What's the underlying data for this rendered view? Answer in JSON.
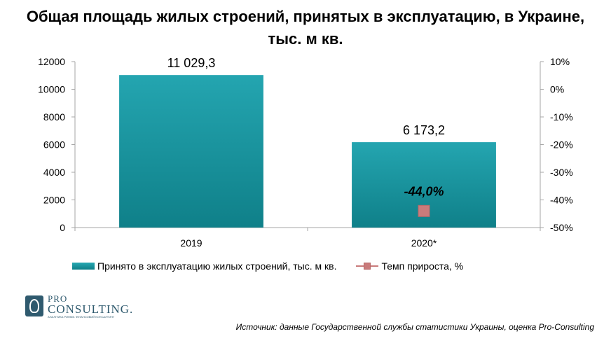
{
  "title": "Общая площадь жилых строений, принятых в эксплуатацию, в Украине, тыс. м кв.",
  "chart_data": {
    "type": "bar",
    "categories": [
      "2019",
      "2020*"
    ],
    "series": [
      {
        "name": "Принято  в эксплуатацию жилых  строений,  тыс. м кв.",
        "type": "bar",
        "axis": "left",
        "values": [
          11029.3,
          6173.2
        ],
        "labels": [
          "11 029,3",
          "6 173,2"
        ],
        "color": "#1a959f"
      },
      {
        "name": "Темп  прироста,  %",
        "type": "line",
        "axis": "right",
        "values": [
          null,
          -44.0
        ],
        "labels": [
          "",
          "-44,0%"
        ],
        "color": "#c97b7b"
      }
    ],
    "y_left": {
      "ylim": [
        0,
        12000
      ],
      "ticks": [
        0,
        2000,
        4000,
        6000,
        8000,
        10000,
        12000
      ],
      "tick_labels": [
        "0",
        "2000",
        "4000",
        "6000",
        "8000",
        "10000",
        "12000"
      ]
    },
    "y_right": {
      "ylim": [
        -50,
        10
      ],
      "ticks": [
        -50,
        -40,
        -30,
        -20,
        -10,
        0,
        10
      ],
      "tick_labels": [
        "-50%",
        "-40%",
        "-30%",
        "-20%",
        "-10%",
        "0%",
        "10%"
      ]
    },
    "grid": false,
    "legend_position": "bottom"
  },
  "logo": {
    "line1": "PRO",
    "line2": "CONSULTING.",
    "tagline": "АНАЛІТИКА РИНКІВ. ФІНАНСОВИЙ КОНСАЛТИНГ"
  },
  "source": "Источник: данные Государственной службы статистики Украины, оценка Pro-Consulting"
}
